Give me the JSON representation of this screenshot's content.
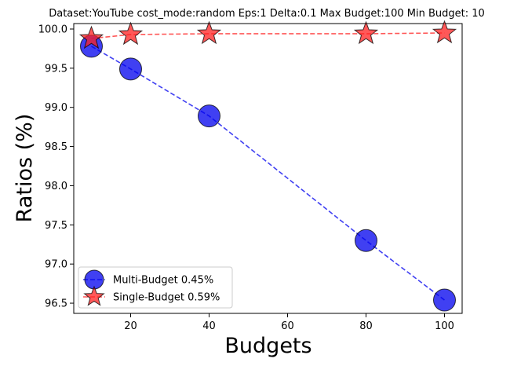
{
  "chart_data": {
    "type": "line",
    "title": "Dataset:YouTube cost_mode:random Eps:1 Delta:0.1 Max Budget:100 Min Budget: 10",
    "xlabel": "Budgets",
    "ylabel": "Ratios (%)",
    "xlim": [
      5.5,
      104.5
    ],
    "ylim": [
      96.37,
      100.07
    ],
    "xticks": [
      20,
      40,
      60,
      80,
      100
    ],
    "yticks": [
      96.5,
      97.0,
      97.5,
      98.0,
      98.5,
      99.0,
      99.5,
      100.0
    ],
    "ytick_labels": [
      "96.5",
      "97.0",
      "97.5",
      "98.0",
      "98.5",
      "99.0",
      "99.5",
      "100.0"
    ],
    "grid": false,
    "legend_position": "lower left",
    "series": [
      {
        "name": "Multi-Budget 0.45%",
        "marker": "circle",
        "color": "#0000ee",
        "line_style": "dashed",
        "x": [
          10,
          20,
          40,
          80,
          100
        ],
        "y": [
          99.78,
          99.49,
          98.89,
          97.3,
          96.54
        ]
      },
      {
        "name": "Single-Budget 0.59%",
        "marker": "star",
        "color": "#ff2020",
        "line_style": "dashed",
        "x": [
          10,
          20,
          40,
          80,
          100
        ],
        "y": [
          99.88,
          99.93,
          99.94,
          99.94,
          99.95
        ]
      }
    ]
  }
}
